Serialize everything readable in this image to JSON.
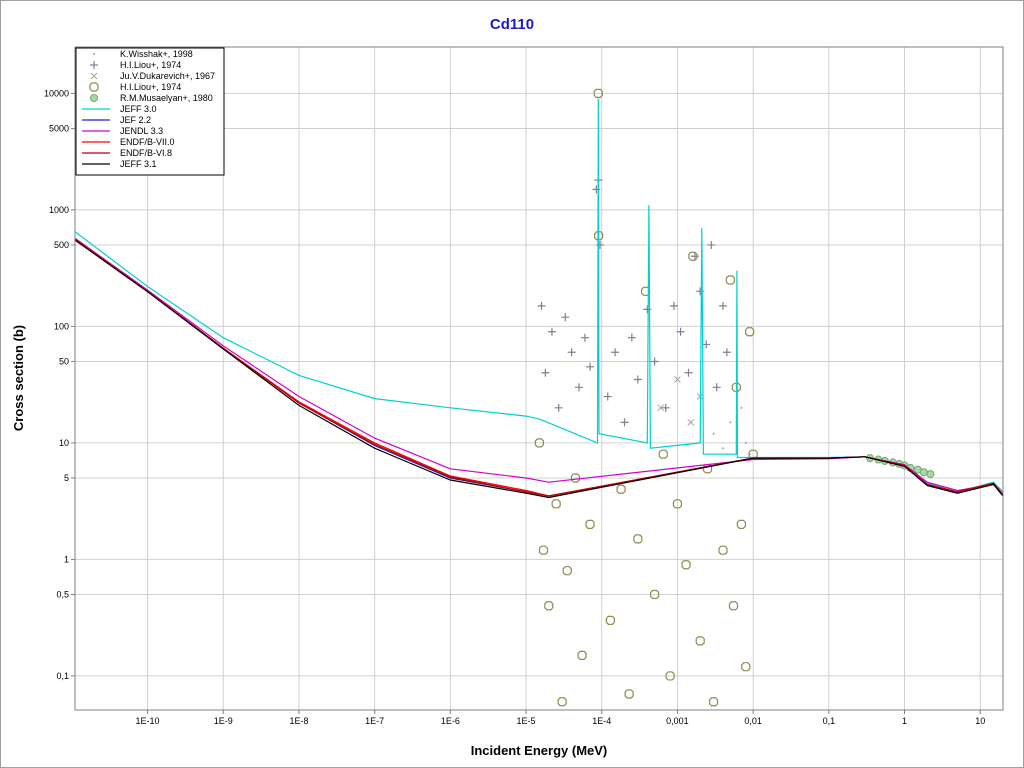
{
  "chart_data": {
    "type": "line",
    "title": "Cd110",
    "xlabel": "Incident Energy (MeV)",
    "ylabel": "Cross section (b)",
    "xscale": "log",
    "yscale": "log",
    "xlim": [
      1.1e-11,
      20
    ],
    "ylim": [
      0.051,
      25000
    ],
    "grid": true,
    "legend": "upper left",
    "xticks": [
      {
        "value": 1e-10,
        "label": "1E-10"
      },
      {
        "value": 1e-09,
        "label": "1E-9"
      },
      {
        "value": 1e-08,
        "label": "1E-8"
      },
      {
        "value": 1e-07,
        "label": "1E-7"
      },
      {
        "value": 1e-06,
        "label": "1E-6"
      },
      {
        "value": 1e-05,
        "label": "1E-5"
      },
      {
        "value": 0.0001,
        "label": "1E-4"
      },
      {
        "value": 0.001,
        "label": "0,001"
      },
      {
        "value": 0.01,
        "label": "0,01"
      },
      {
        "value": 0.1,
        "label": "0,1"
      },
      1,
      10
    ],
    "yticks": [
      10000,
      5000,
      1000,
      500,
      100,
      50,
      10,
      5,
      1,
      {
        "value": 0.5,
        "label": "0,5"
      },
      {
        "value": 0.1,
        "label": "0,1"
      }
    ],
    "series": [
      {
        "name": "K.Wisshak+, 1998",
        "kind": "scatter",
        "marker": "dot",
        "color": "#a0a0a0",
        "x": [
          0.003,
          0.004,
          0.005,
          0.006,
          0.007,
          0.008,
          0.009
        ],
        "y": [
          12,
          9,
          15,
          7,
          20,
          10,
          8
        ]
      },
      {
        "name": "H.I.Liou+, 1974",
        "kind": "scatter",
        "marker": "plus",
        "color": "#8a7898",
        "x": [
          1.6e-05,
          1.8e-05,
          2.2e-05,
          2.7e-05,
          3.3e-05,
          4e-05,
          5e-05,
          6e-05,
          7e-05,
          8.5e-05,
          9e-05,
          9.5e-05,
          0.00012,
          0.00015,
          0.0002,
          0.00025,
          0.0003,
          0.0004,
          0.0005,
          0.0007,
          0.0009,
          0.0011,
          0.0014,
          0.0017,
          0.002,
          0.0024,
          0.0028,
          0.0033,
          0.004,
          0.0045
        ],
        "y": [
          150,
          40,
          90,
          20,
          120,
          60,
          30,
          80,
          45,
          1500,
          1800,
          500,
          25,
          60,
          15,
          80,
          35,
          140,
          50,
          20,
          150,
          90,
          40,
          400,
          200,
          70,
          500,
          30,
          150,
          60
        ]
      },
      {
        "name": "Ju.V.Dukarevich+, 1967",
        "kind": "scatter",
        "marker": "x",
        "color": "#b0a0a0",
        "x": [
          0.0006,
          0.001,
          0.0015,
          0.002
        ],
        "y": [
          20,
          35,
          15,
          25
        ]
      },
      {
        "name": "H.I.Liou+, 1974",
        "kind": "scatter",
        "marker": "octagon",
        "color": "#8f8a50",
        "x": [
          1.5e-05,
          1.7e-05,
          2e-05,
          2.5e-05,
          3e-05,
          3.5e-05,
          4.5e-05,
          5.5e-05,
          7e-05,
          9e-05,
          9.1e-05,
          0.00013,
          0.00018,
          0.00023,
          0.0003,
          0.00038,
          0.0005,
          0.00065,
          0.0008,
          0.001,
          0.0013,
          0.0016,
          0.002,
          0.0025,
          0.003,
          0.004,
          0.005,
          0.0055,
          0.006,
          0.007,
          0.008,
          0.009,
          0.01
        ],
        "y": [
          10,
          1.2,
          0.4,
          3,
          0.06,
          0.8,
          5,
          0.15,
          2,
          10000,
          600,
          0.3,
          4,
          0.07,
          1.5,
          200,
          0.5,
          8,
          0.1,
          3,
          0.9,
          400,
          0.2,
          6,
          0.06,
          1.2,
          250,
          0.4,
          30,
          2,
          0.12,
          90,
          8
        ]
      },
      {
        "name": "R.M.Musaelyan+, 1980",
        "kind": "scatter",
        "marker": "circle",
        "color": "#70a870",
        "x": [
          0.35,
          0.45,
          0.55,
          0.7,
          0.85,
          1,
          1.2,
          1.5,
          1.8,
          2.2
        ],
        "y": [
          7.4,
          7.2,
          7,
          6.8,
          6.6,
          6.4,
          6.1,
          5.9,
          5.6,
          5.4
        ]
      },
      {
        "name": "JEFF 3.0",
        "kind": "line",
        "color": "#00d0d0",
        "x": [
          1.1e-11,
          1e-10,
          1e-09,
          1e-08,
          1e-07,
          1e-06,
          1e-05,
          1.5e-05,
          8.8e-05,
          9e-05,
          9.2e-05,
          0.0004,
          0.00042,
          0.00044,
          0.002,
          0.0021,
          0.0022,
          0.006,
          0.0061,
          0.0062,
          0.01,
          0.1,
          0.3,
          1,
          2,
          5,
          15,
          20
        ],
        "y": [
          650,
          220,
          80,
          38,
          24,
          20,
          17,
          16,
          10,
          9000,
          12,
          10,
          1100,
          9,
          10,
          700,
          8,
          8,
          300,
          7.5,
          7.5,
          7.5,
          7.6,
          6.5,
          4.5,
          3.8,
          4.6,
          3.8
        ]
      },
      {
        "name": "JEF 2.2",
        "kind": "line",
        "color": "#2020c0",
        "x": [
          1.1e-11,
          1e-10,
          1e-09,
          1e-08,
          1e-07,
          1e-06,
          1e-05,
          2e-05,
          0.01,
          0.1,
          0.3,
          1,
          2,
          5,
          15,
          20
        ],
        "y": [
          560,
          200,
          65,
          22,
          9.5,
          5,
          3.8,
          3.5,
          7.4,
          7.4,
          7.6,
          6.4,
          4.4,
          3.8,
          4.5,
          3.6
        ]
      },
      {
        "name": "JENDL 3.3",
        "kind": "line",
        "color": "#d000d0",
        "x": [
          1.1e-11,
          1e-10,
          1e-09,
          1e-08,
          1e-07,
          1e-06,
          1e-05,
          2e-05,
          0.01,
          0.1,
          0.3,
          1,
          2,
          5,
          15,
          20
        ],
        "y": [
          570,
          205,
          68,
          25,
          11,
          6,
          5,
          4.6,
          7.2,
          7.3,
          7.6,
          6.5,
          4.6,
          3.9,
          4.4,
          3.5
        ]
      },
      {
        "name": "ENDF/B-VII.0",
        "kind": "line",
        "color": "#ff0000",
        "x": [
          1.1e-11,
          1e-10,
          1e-09,
          1e-08,
          1e-07,
          1e-06,
          1e-05,
          2e-05,
          0.01,
          0.1,
          0.3,
          1,
          2,
          5,
          15,
          20
        ],
        "y": [
          560,
          200,
          65,
          22.5,
          10,
          5.2,
          3.9,
          3.5,
          7.4,
          7.4,
          7.6,
          6.4,
          4.4,
          3.8,
          4.5,
          3.6
        ]
      },
      {
        "name": "ENDF/B-VI.8",
        "kind": "line",
        "color": "#c00000",
        "x": [
          1.1e-11,
          1e-10,
          1e-09,
          1e-08,
          1e-07,
          1e-06,
          1e-05,
          2e-05,
          0.01,
          0.1,
          0.3,
          1,
          2,
          5,
          15,
          20
        ],
        "y": [
          560,
          200,
          65,
          22,
          9.7,
          5.1,
          3.8,
          3.5,
          7.4,
          7.4,
          7.6,
          6.4,
          4.4,
          3.8,
          4.5,
          3.6
        ]
      },
      {
        "name": "JEFF 3.1",
        "kind": "line",
        "color": "#000000",
        "x": [
          1.1e-11,
          1e-10,
          1e-09,
          1e-08,
          1e-07,
          1e-06,
          1e-05,
          2e-05,
          0.01,
          0.1,
          0.3,
          1,
          2,
          5,
          15,
          20
        ],
        "y": [
          550,
          198,
          64,
          21,
          9,
          4.8,
          3.7,
          3.4,
          7.4,
          7.4,
          7.6,
          6.3,
          4.3,
          3.7,
          4.4,
          3.5
        ]
      }
    ]
  }
}
